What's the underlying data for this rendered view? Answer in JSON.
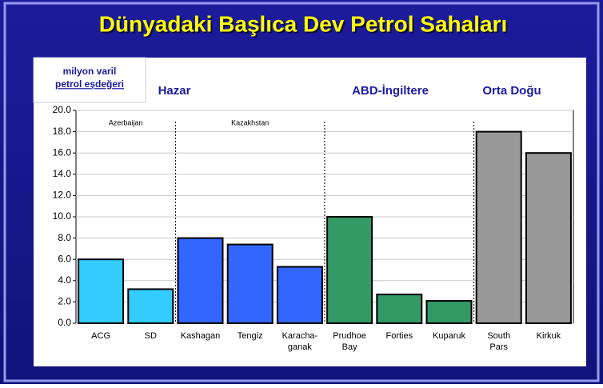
{
  "chart_data": {
    "type": "bar",
    "title": "Dünyadaki Başlıca Dev Petrol Sahaları",
    "y_label": [
      "milyon varil",
      "petrol eşdeğeri"
    ],
    "group_labels": [
      "Hazar",
      "ABD-İngiltere",
      "Orta Doğu"
    ],
    "subgroup_labels": [
      "Azerbaijan",
      "Kazakhstan"
    ],
    "categories": [
      "ACG",
      "SD",
      "Kashagan",
      "Tengiz",
      "Karacha-ganak",
      "Prudhoe Bay",
      "Forties",
      "Kuparuk",
      "South Pars",
      "Kirkuk"
    ],
    "values": [
      6.0,
      3.2,
      8.0,
      7.4,
      5.3,
      10.0,
      2.7,
      2.1,
      18.0,
      16.0
    ],
    "colors": [
      "#33ccff",
      "#33ccff",
      "#3366ff",
      "#3366ff",
      "#3366ff",
      "#339966",
      "#339966",
      "#339966",
      "#999999",
      "#999999"
    ],
    "ylim": [
      0,
      20
    ],
    "yticks": [
      {
        "value": 0,
        "label": "0.0"
      },
      {
        "value": 2,
        "label": "2.0"
      },
      {
        "value": 4,
        "label": "4.0"
      },
      {
        "value": 6,
        "label": "6.0"
      },
      {
        "value": 8,
        "label": "8.0"
      },
      {
        "value": 10,
        "label": "10.0"
      },
      {
        "value": 12,
        "label": "12.0"
      },
      {
        "value": 14,
        "label": "14.0"
      },
      {
        "value": 16,
        "label": "16.0"
      },
      {
        "value": 18,
        "label": "18.0"
      },
      {
        "value": 20,
        "label": "20.0"
      }
    ],
    "grid": true
  }
}
